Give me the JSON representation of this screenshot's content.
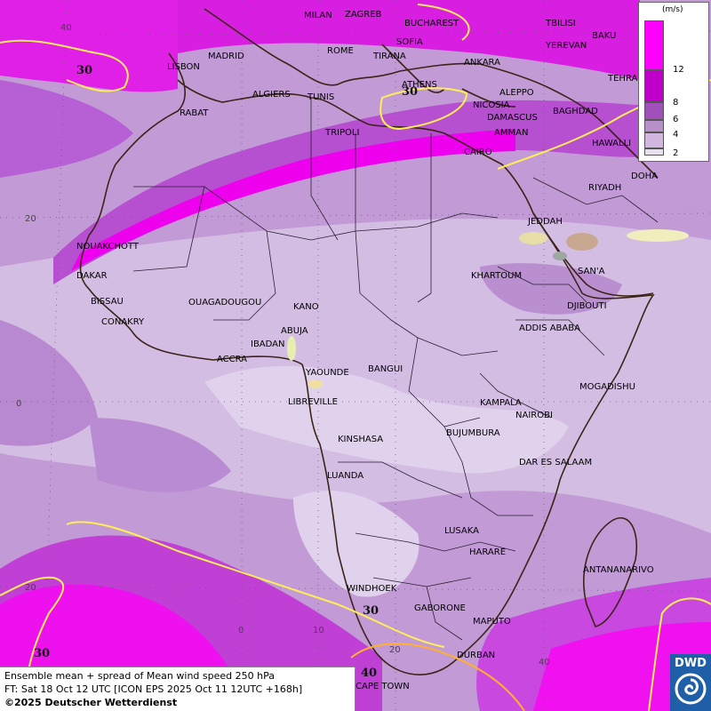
{
  "legend": {
    "unit": "(m/s)",
    "ticks": [
      "12",
      "8",
      "6",
      "4",
      "2"
    ],
    "colors": [
      "#ff00ff",
      "#c000c8",
      "#a050b8",
      "#b890cc",
      "#d2b8e0",
      "#e8e0ee"
    ]
  },
  "info": {
    "line1": "Ensemble mean + spread of Mean wind speed 250 hPa",
    "line2": "FT: Sat 18 Oct 12 UTC [ICON EPS 2025 Oct 11 12UTC +168h]",
    "copyright": "©2025 Deutscher Wetterdienst"
  },
  "logo": {
    "text": "DWD"
  },
  "latlon": {
    "top": "40",
    "lat20n": "20",
    "lat0": "0",
    "lat20s": "20",
    "lon0": "0",
    "lon10": "10",
    "lon20": "20",
    "lon40": "40"
  },
  "isotachs": {
    "nw": "30",
    "med": "30",
    "sw": "30",
    "s": "30",
    "cape": "40"
  },
  "cities": {
    "milan": "MILAN",
    "zagreb": "ZAGREB",
    "bucharest": "BUCHAREST",
    "tbilisi": "TBILISI",
    "baku": "BAKU",
    "yerevan": "YEREVAN",
    "madrid": "MADRID",
    "rome": "ROME",
    "sofia": "SOFIA",
    "lisbon": "LISBON",
    "tirana": "TIRANA",
    "ankara": "ANKARA",
    "tehran": "TEHRA",
    "athens": "ATHENS",
    "algiers": "ALGIERS",
    "tunis": "TUNIS",
    "aleppo": "ALEPPO",
    "rabat": "RABAT",
    "nicosia": "NICOSIA",
    "baghdad": "BAGHDAD",
    "damascus": "DAMASCUS",
    "tripoli": "TRIPOLI",
    "amman": "AMMAN",
    "kuwait": "HAWALLI",
    "cairo": "CAIRO",
    "doha": "DOHA",
    "riyadh": "RIYADH",
    "nouakchott": "NOUAKCHOTT",
    "jeddah": "JEDDAH",
    "dakar": "DAKAR",
    "sanaa": "SAN'A",
    "khartoum": "KHARTOUM",
    "bissau": "BISSAU",
    "ouagadougou": "OUAGADOUGOU",
    "kano": "KANO",
    "djibouti": "DJIBOUTI",
    "conakry": "CONAKRY",
    "abuja": "ABUJA",
    "addis": "ADDIS ABABA",
    "ibadan": "IBADAN",
    "accra": "ACCRA",
    "yaounde": "YAOUNDE",
    "bangui": "BANGUI",
    "mogadishu": "MOGADISHU",
    "libreville": "LIBREVILLE",
    "kampala": "KAMPALA",
    "nairobi": "NAIROBI",
    "kinshasa": "KINSHASA",
    "bujumbura": "BUJUMBURA",
    "daressalaam": "DAR ES SALAAM",
    "luanda": "LUANDA",
    "lusaka": "LUSAKA",
    "harare": "HARARE",
    "antananarivo": "ANTANANARIVO",
    "windhoek": "WINDHOEK",
    "gaborone": "GABORONE",
    "maputo": "MAPUTO",
    "durban": "DURBAN",
    "capetown": "CAPE TOWN"
  }
}
